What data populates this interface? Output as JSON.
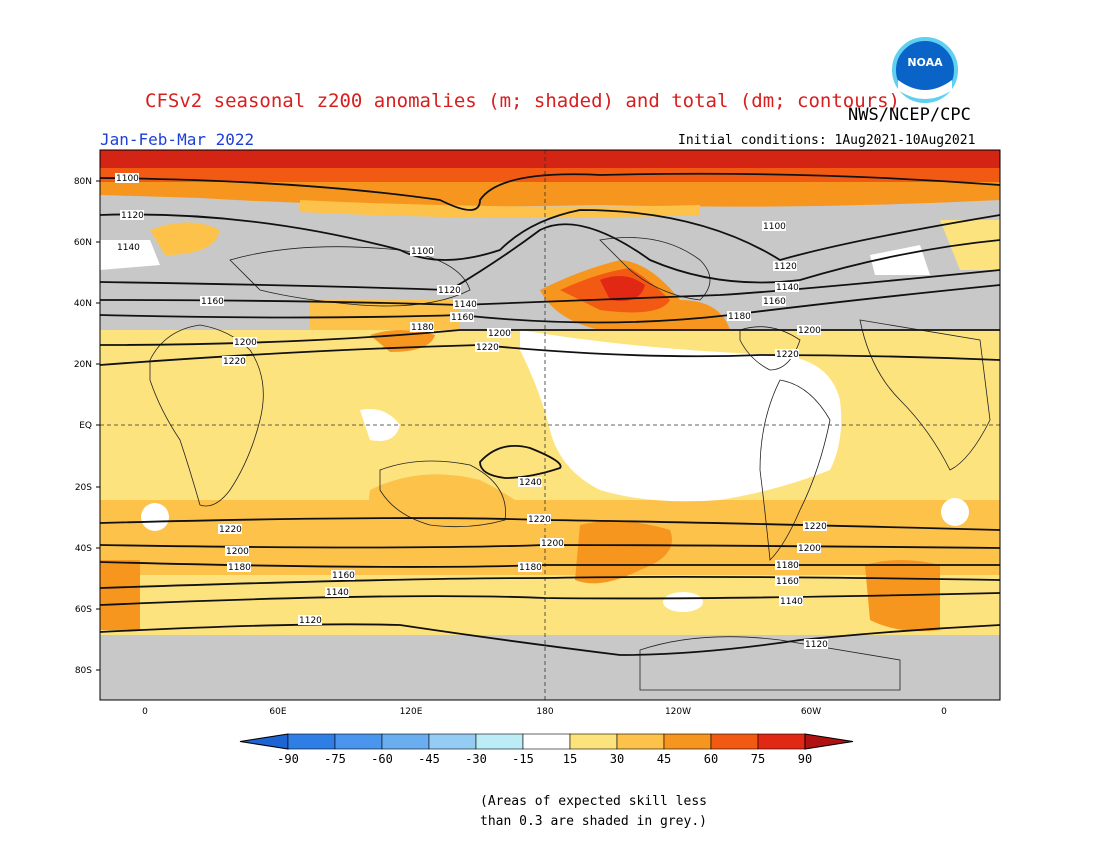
{
  "title": "CFSv2 seasonal z200 anomalies (m; shaded) and total (dm; contours)",
  "agency": "NWS/NCEP/CPC",
  "logo_text": "NOAA",
  "period": "Jan-Feb-Mar 2022",
  "initial_conditions": "Initial conditions: 1Aug2021-10Aug2021",
  "lat_labels": [
    "80N",
    "60N",
    "40N",
    "20N",
    "EQ",
    "20S",
    "40S",
    "60S",
    "80S"
  ],
  "lon_labels": [
    "0",
    "60E",
    "120E",
    "180",
    "120W",
    "60W",
    "0"
  ],
  "colorbar": {
    "ticks": [
      "-90",
      "-75",
      "-60",
      "-45",
      "-30",
      "-15",
      "15",
      "30",
      "45",
      "60",
      "75",
      "90"
    ],
    "colors": [
      "#1e64d2",
      "#2f7ee6",
      "#4a96ee",
      "#6aaef0",
      "#95ccf4",
      "#bcecf6",
      "#ffffff",
      "#fde37e",
      "#fcc24a",
      "#f7961e",
      "#f25a14",
      "#e02814",
      "#b01212"
    ]
  },
  "contour_labels": [
    "1100",
    "1120",
    "1140",
    "1160",
    "1180",
    "1200",
    "1220",
    "1240"
  ],
  "skill_note": "(Areas of expected skill less\nthan 0.3 are shaded in grey.)",
  "colors": {
    "title": "#d81e1e",
    "period": "#1c3fd6",
    "grey_skill": "#c8c8c8",
    "ocean_light": "#fde37e",
    "ocean_mid": "#fcc24a"
  }
}
